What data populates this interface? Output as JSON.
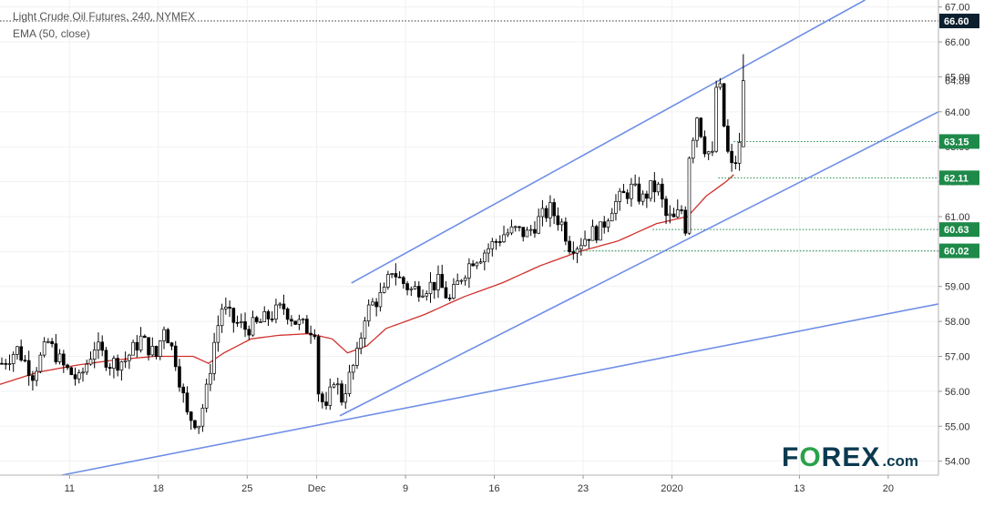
{
  "header": {
    "title": "Light Crude Oil Futures, 240, NYMEX",
    "indicator": "EMA (50, close)"
  },
  "logo": {
    "main_a": "F",
    "main_o": "O",
    "main_b": "REX",
    "suffix": ".com"
  },
  "colors": {
    "up": "#26a69a",
    "down": "#000000",
    "ema": "#d0312d",
    "trend": "#6f8fe6",
    "level": "#1e8a4a",
    "tag": "#1e8a4a",
    "dark_tag": "#0b1f2e",
    "dotted_top": "#333333"
  },
  "chart_data": {
    "type": "candlestick",
    "title": "Light Crude Oil Futures, 240, NYMEX",
    "ylim": [
      53.6,
      67.2
    ],
    "y_ticks": [
      54.0,
      55.0,
      56.0,
      57.0,
      58.0,
      59.0,
      60.0,
      61.0,
      62.0,
      63.0,
      64.0,
      65.0,
      66.0,
      67.0
    ],
    "y_tick_labels": [
      "54.00",
      "55.00",
      "56.00",
      "57.00",
      "58.00",
      "59.00",
      "60.00",
      "61.00",
      "62.00",
      "63.00",
      "64.00",
      "65.00",
      "66.00",
      "67.00"
    ],
    "x_range": [
      0,
      243
    ],
    "x_ticks": [
      {
        "label": "11",
        "x": 18
      },
      {
        "label": "18",
        "x": 41
      },
      {
        "label": "25",
        "x": 64
      },
      {
        "label": "Dec",
        "x": 82
      },
      {
        "label": "9",
        "x": 105
      },
      {
        "label": "16",
        "x": 128
      },
      {
        "label": "23",
        "x": 151
      },
      {
        "label": "2020",
        "x": 174
      },
      {
        "label": "13",
        "x": 207
      },
      {
        "label": "20",
        "x": 230
      }
    ],
    "price_tags": [
      {
        "value": 66.6,
        "label": "66.60",
        "style": "dark",
        "line_from_x": 0
      },
      {
        "value": 64.89,
        "label": "64.89",
        "style": "plain"
      },
      {
        "value": 63.15,
        "label": "63.15",
        "style": "green",
        "line_from_x": 190
      },
      {
        "value": 62.11,
        "label": "62.11",
        "style": "green",
        "line_from_x": 186
      },
      {
        "value": 60.63,
        "label": "60.63",
        "style": "green",
        "line_from_x": 169
      },
      {
        "value": 60.02,
        "label": "60.02",
        "style": "green",
        "line_from_x": 146
      }
    ],
    "trendlines": [
      {
        "name": "upper channel",
        "x1": 91,
        "y1": 59.1,
        "x2": 224,
        "y2": 67.2
      },
      {
        "name": "lower channel",
        "x1": 88,
        "y1": 55.3,
        "x2": 243,
        "y2": 64.0
      },
      {
        "name": "long-term support",
        "x1": 16,
        "y1": 53.6,
        "x2": 243,
        "y2": 58.5
      }
    ],
    "ema_anchors": [
      [
        0,
        56.2
      ],
      [
        10,
        56.55
      ],
      [
        20,
        56.75
      ],
      [
        30,
        56.9
      ],
      [
        40,
        57.0
      ],
      [
        50,
        57.0
      ],
      [
        54,
        56.8
      ],
      [
        58,
        57.1
      ],
      [
        65,
        57.5
      ],
      [
        72,
        57.6
      ],
      [
        80,
        57.65
      ],
      [
        86,
        57.5
      ],
      [
        90,
        57.1
      ],
      [
        95,
        57.3
      ],
      [
        100,
        57.8
      ],
      [
        110,
        58.2
      ],
      [
        120,
        58.7
      ],
      [
        130,
        59.1
      ],
      [
        140,
        59.6
      ],
      [
        150,
        60.0
      ],
      [
        160,
        60.3
      ],
      [
        170,
        60.8
      ],
      [
        178,
        61.0
      ],
      [
        183,
        61.6
      ],
      [
        188,
        62.0
      ],
      [
        190,
        62.2
      ]
    ],
    "close_anchors": [
      [
        0,
        56.8
      ],
      [
        4,
        57.2
      ],
      [
        8,
        56.5
      ],
      [
        12,
        57.4
      ],
      [
        16,
        56.7
      ],
      [
        20,
        56.3
      ],
      [
        24,
        57.3
      ],
      [
        28,
        56.8
      ],
      [
        32,
        56.9
      ],
      [
        36,
        57.5
      ],
      [
        40,
        57.0
      ],
      [
        42,
        57.9
      ],
      [
        45,
        56.9
      ],
      [
        48,
        55.3
      ],
      [
        51,
        55.1
      ],
      [
        53,
        56.0
      ],
      [
        55,
        57.4
      ],
      [
        57,
        58.4
      ],
      [
        60,
        58.0
      ],
      [
        63,
        57.8
      ],
      [
        66,
        57.9
      ],
      [
        70,
        58.2
      ],
      [
        73,
        58.4
      ],
      [
        76,
        58.0
      ],
      [
        79,
        57.8
      ],
      [
        81,
        57.8
      ],
      [
        82,
        56.0
      ],
      [
        84,
        55.4
      ],
      [
        86,
        56.4
      ],
      [
        88,
        55.8
      ],
      [
        90,
        56.4
      ],
      [
        92,
        57.0
      ],
      [
        94,
        58.2
      ],
      [
        96,
        58.5
      ],
      [
        99,
        58.8
      ],
      [
        101,
        59.5
      ],
      [
        103,
        59.2
      ],
      [
        106,
        58.9
      ],
      [
        110,
        59.0
      ],
      [
        113,
        59.1
      ],
      [
        116,
        58.6
      ],
      [
        119,
        59.3
      ],
      [
        122,
        59.8
      ],
      [
        124,
        59.9
      ],
      [
        127,
        60.2
      ],
      [
        130,
        60.5
      ],
      [
        133,
        60.6
      ],
      [
        136,
        60.5
      ],
      [
        139,
        60.9
      ],
      [
        142,
        61.2
      ],
      [
        145,
        60.8
      ],
      [
        147,
        60.2
      ],
      [
        149,
        60.2
      ],
      [
        152,
        60.5
      ],
      [
        155,
        60.6
      ],
      [
        158,
        61.3
      ],
      [
        161,
        61.6
      ],
      [
        163,
        61.8
      ],
      [
        166,
        61.5
      ],
      [
        168,
        61.8
      ],
      [
        170,
        61.8
      ],
      [
        172,
        61.0
      ],
      [
        174,
        60.9
      ],
      [
        176,
        61.2
      ],
      [
        177,
        60.7
      ],
      [
        178,
        62.8
      ],
      [
        180,
        63.9
      ],
      [
        182,
        63.0
      ],
      [
        184,
        62.7
      ],
      [
        185,
        64.7
      ],
      [
        186,
        64.6
      ],
      [
        187,
        63.6
      ],
      [
        188,
        62.8
      ],
      [
        189,
        62.4
      ],
      [
        190,
        62.6
      ],
      [
        191,
        63.0
      ],
      [
        192,
        64.9
      ]
    ],
    "last_candle": {
      "open": 63.0,
      "high": 65.65,
      "low": 63.0,
      "close": 64.89
    }
  }
}
